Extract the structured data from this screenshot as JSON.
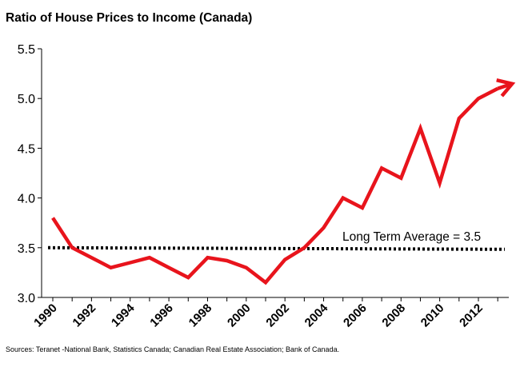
{
  "title": "Ratio of House Prices to Income (Canada)",
  "source": "Sources: Teranet -National Bank, Statistics Canada;  Canadian Real Estate Association; Bank of Canada.",
  "chart_data": {
    "type": "line",
    "title": "Ratio of House Prices to Income (Canada)",
    "xlabel": "",
    "ylabel": "",
    "ylim": [
      3.0,
      5.5
    ],
    "xlim": [
      1990,
      2013.7
    ],
    "yticks": [
      "3.0",
      "3.5",
      "4.0",
      "4.5",
      "5.0",
      "5.5"
    ],
    "xticks": [
      "1990",
      "1992",
      "1994",
      "1996",
      "1998",
      "2000",
      "2002",
      "2004",
      "2006",
      "2008",
      "2010",
      "2012"
    ],
    "grid": false,
    "legend": "none",
    "series": [
      {
        "color": "#e8141c",
        "x": [
          1990,
          1991,
          1992,
          1993,
          1994,
          1995,
          1996,
          1997,
          1998,
          1999,
          2000,
          2001,
          2002,
          2003,
          2004,
          2005,
          2006,
          2007,
          2008,
          2009,
          2010,
          2011,
          2012,
          2013
        ],
        "y": [
          3.8,
          3.5,
          3.4,
          3.3,
          3.35,
          3.4,
          3.3,
          3.2,
          3.4,
          3.37,
          3.3,
          3.15,
          3.38,
          3.5,
          3.7,
          4.0,
          3.9,
          4.3,
          4.2,
          4.7,
          4.15,
          4.8,
          5.0,
          5.1
        ],
        "arrow_end": true
      }
    ],
    "reference_line": {
      "value": 3.5,
      "label": "Long Term Average = 3.5",
      "style": "dotted",
      "color": "#000000"
    }
  }
}
